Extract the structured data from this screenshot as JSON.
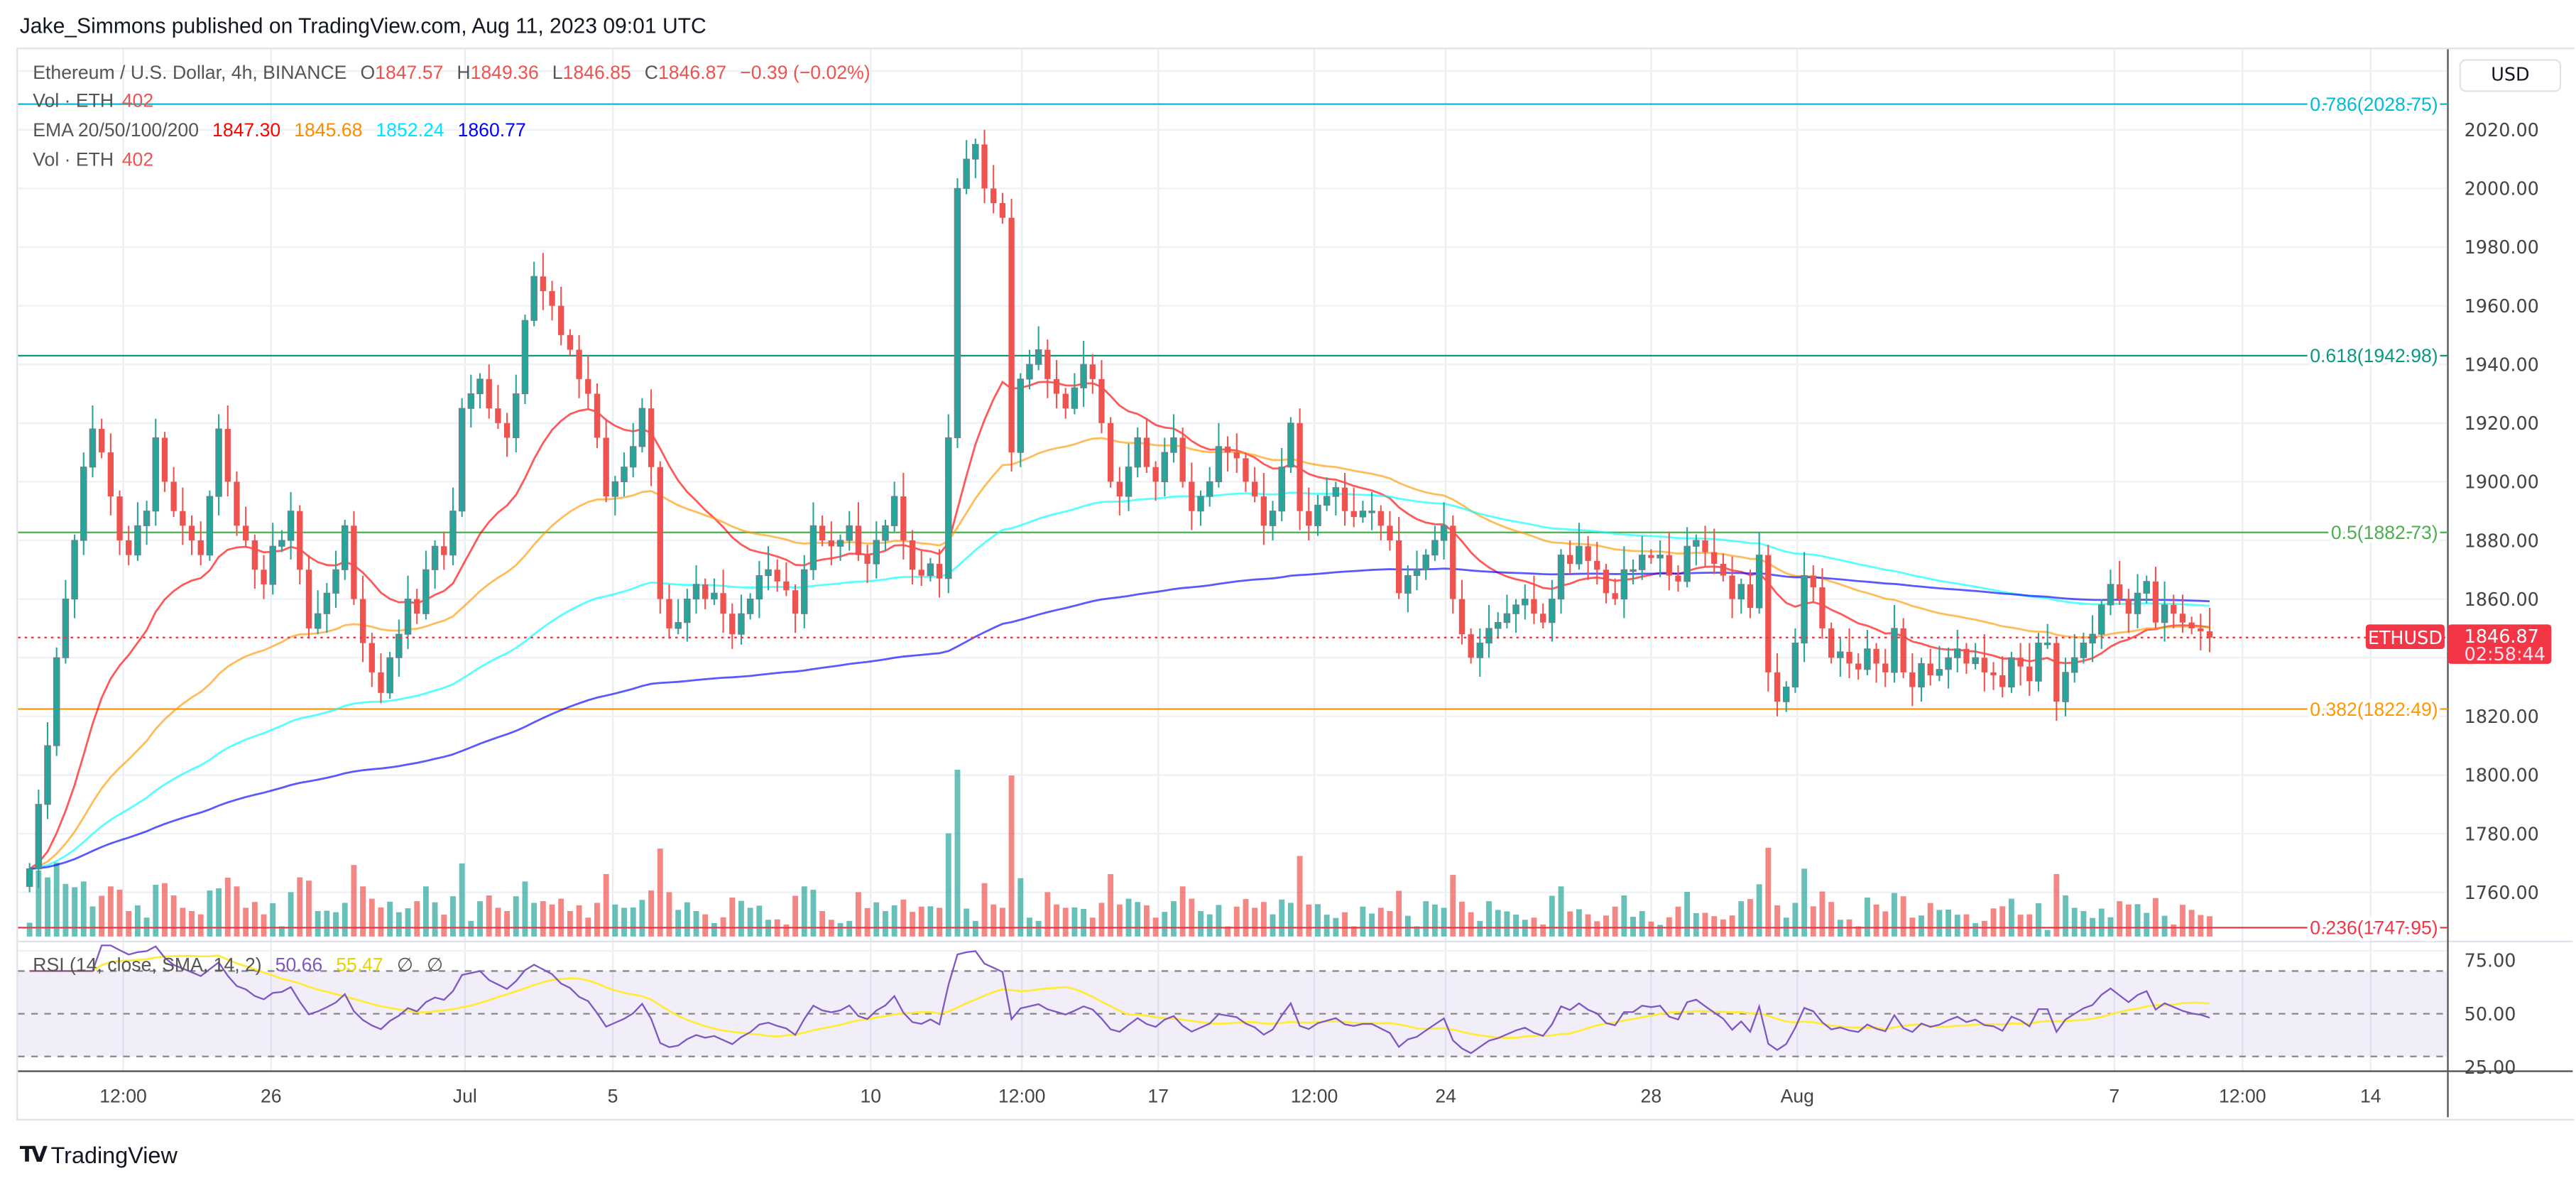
{
  "header": {
    "published": "Jake_Simmons published on TradingView.com, Aug 11, 2023 09:01 UTC"
  },
  "legend": {
    "symbol": "Ethereum / U.S. Dollar, 4h, BINANCE",
    "o_label": "O",
    "o": "1847.57",
    "h_label": "H",
    "h": "1849.36",
    "l_label": "L",
    "l": "1846.85",
    "c_label": "C",
    "c": "1846.87",
    "change": "−0.39 (−0.02%)",
    "vol_label": "Vol · ETH",
    "vol": "402",
    "ema_label": "EMA 20/50/100/200",
    "ema_values": [
      "1847.30",
      "1845.68",
      "1852.24",
      "1860.77"
    ],
    "vol2_label": "Vol · ETH",
    "vol2": "402",
    "rsi_label": "RSI (14, close, SMA, 14, 2)",
    "rsi": "50.66",
    "rsi_sma": "55.47",
    "rsi_extra1": "∅",
    "rsi_extra2": "∅"
  },
  "price_axis": {
    "currency": "USD",
    "ticks": [
      "2020.00",
      "2000.00",
      "1980.00",
      "1960.00",
      "1940.00",
      "1920.00",
      "1900.00",
      "1880.00",
      "1860.00",
      "1820.00",
      "1800.00",
      "1780.00",
      "1760.00"
    ],
    "rsi_ticks": [
      "75.00",
      "50.00",
      "25.00"
    ]
  },
  "last_price": {
    "symbol": "ETHUSD",
    "price": "1846.87",
    "countdown": "02:58:44",
    "color": "#f23645"
  },
  "logo": {
    "text": "TradingView"
  },
  "colors": {
    "up": "#26a69a",
    "down": "#ef5350",
    "ema20": "#ff0000",
    "ema50": "#ff9800",
    "ema100": "#00ffff",
    "ema200": "#0000ff",
    "rsi": "#7e57c2",
    "rsi_sma": "#ffeb3b"
  },
  "chart_data": {
    "type": "candlestick",
    "symbol": "ETHUSD",
    "interval": "4h",
    "ylim": [
      1740,
      2035
    ],
    "rsi_ylim": [
      20,
      80
    ],
    "rsi_bands": [
      70,
      50,
      30
    ],
    "grid": true,
    "x_ticks": [
      "12:00",
      "26",
      "Jul",
      "5",
      "10",
      "12:00",
      "17",
      "12:00",
      "24",
      "28",
      "Aug",
      "7",
      "12:00",
      "14"
    ],
    "fib_levels": [
      {
        "label": "0.786(2028.75)",
        "value": 2028.75,
        "color": "#00bcd4"
      },
      {
        "label": "0.618(1942.98)",
        "value": 1942.98,
        "color": "#089981"
      },
      {
        "label": "0.5(1882.73)",
        "value": 1882.73,
        "color": "#4caf50"
      },
      {
        "label": "0.382(1822.49)",
        "value": 1822.49,
        "color": "#ff9800"
      },
      {
        "label": "0.236(1747.95)",
        "value": 1747.95,
        "color": "#f23645"
      }
    ],
    "closes": [
      1768,
      1790,
      1810,
      1840,
      1860,
      1880,
      1905,
      1918,
      1910,
      1895,
      1880,
      1875,
      1885,
      1890,
      1915,
      1900,
      1890,
      1885,
      1880,
      1875,
      1895,
      1918,
      1900,
      1885,
      1880,
      1870,
      1865,
      1878,
      1880,
      1890,
      1870,
      1850,
      1855,
      1862,
      1870,
      1885,
      1860,
      1845,
      1835,
      1828,
      1840,
      1848,
      1860,
      1855,
      1870,
      1878,
      1875,
      1890,
      1925,
      1930,
      1935,
      1925,
      1920,
      1915,
      1930,
      1955,
      1970,
      1965,
      1960,
      1950,
      1945,
      1935,
      1930,
      1915,
      1895,
      1900,
      1905,
      1912,
      1925,
      1905,
      1860,
      1850,
      1852,
      1860,
      1865,
      1860,
      1862,
      1855,
      1848,
      1855,
      1860,
      1868,
      1870,
      1866,
      1863,
      1855,
      1870,
      1885,
      1880,
      1878,
      1880,
      1885,
      1875,
      1872,
      1880,
      1885,
      1895,
      1880,
      1870,
      1868,
      1872,
      1867,
      1915,
      2000,
      2010,
      2015,
      2000,
      1995,
      1990,
      1910,
      1935,
      1940,
      1945,
      1935,
      1930,
      1925,
      1932,
      1940,
      1935,
      1920,
      1900,
      1895,
      1905,
      1915,
      1905,
      1900,
      1910,
      1915,
      1900,
      1890,
      1895,
      1900,
      1912,
      1910,
      1908,
      1900,
      1895,
      1885,
      1890,
      1905,
      1920,
      1890,
      1885,
      1892,
      1895,
      1898,
      1890,
      1888,
      1890,
      1890,
      1885,
      1880,
      1862,
      1868,
      1870,
      1875,
      1880,
      1885,
      1860,
      1848,
      1840,
      1845,
      1850,
      1852,
      1855,
      1858,
      1860,
      1855,
      1852,
      1860,
      1875,
      1872,
      1878,
      1873,
      1870,
      1862,
      1860,
      1870,
      1870,
      1875,
      1874,
      1875,
      1868,
      1866,
      1878,
      1880,
      1876,
      1872,
      1868,
      1860,
      1865,
      1857,
      1875,
      1835,
      1825,
      1830,
      1845,
      1868,
      1864,
      1850,
      1840,
      1842,
      1838,
      1836,
      1843,
      1838,
      1835,
      1850,
      1835,
      1830,
      1838,
      1834,
      1836,
      1840,
      1843,
      1838,
      1840,
      1835,
      1834,
      1830,
      1840,
      1837,
      1832,
      1845,
      1845,
      1825,
      1835,
      1840,
      1845,
      1848,
      1858,
      1865,
      1860,
      1855,
      1862,
      1866,
      1852,
      1858,
      1855,
      1852,
      1850,
      1849,
      1846.87
    ]
  }
}
